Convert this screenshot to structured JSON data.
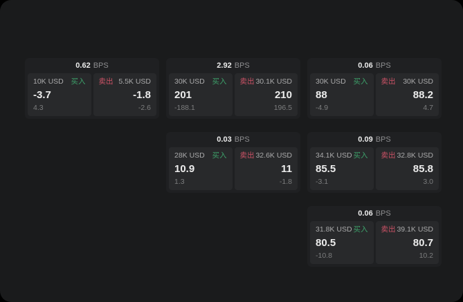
{
  "colors": {
    "page_bg": "#1a1b1c",
    "card_bg": "#1f2022",
    "panel_bg": "#28292b",
    "buy_green": "#3da16a",
    "sell_red": "#cc5266",
    "text_primary": "#ececec",
    "text_secondary": "#aaaaab",
    "text_muted": "#7c7d7e",
    "text_unit": "#8e8e90"
  },
  "labels": {
    "bps_unit": "BPS",
    "buy": "买入",
    "sell": "卖出"
  },
  "cards": [
    {
      "row": 1,
      "col": 1,
      "bps": "0.62",
      "buy": {
        "amount": "10K USD",
        "value": "-3.7",
        "delta": "4.3"
      },
      "sell": {
        "amount": "5.5K USD",
        "value": "-1.8",
        "delta": "-2.6"
      }
    },
    {
      "row": 1,
      "col": 2,
      "bps": "2.92",
      "buy": {
        "amount": "30K USD",
        "value": "201",
        "delta": "-188.1"
      },
      "sell": {
        "amount": "30.1K USD",
        "value": "210",
        "delta": "196.5"
      }
    },
    {
      "row": 1,
      "col": 3,
      "bps": "0.06",
      "buy": {
        "amount": "30K USD",
        "value": "88",
        "delta": "-4.9"
      },
      "sell": {
        "amount": "30K USD",
        "value": "88.2",
        "delta": "4.7"
      }
    },
    {
      "row": 2,
      "col": 2,
      "bps": "0.03",
      "buy": {
        "amount": "28K USD",
        "value": "10.9",
        "delta": "1.3"
      },
      "sell": {
        "amount": "32.6K USD",
        "value": "11",
        "delta": "-1.8"
      }
    },
    {
      "row": 2,
      "col": 3,
      "bps": "0.09",
      "buy": {
        "amount": "34.1K USD",
        "value": "85.5",
        "delta": "-3.1"
      },
      "sell": {
        "amount": "32.8K USD",
        "value": "85.8",
        "delta": "3.0"
      }
    },
    {
      "row": 3,
      "col": 3,
      "bps": "0.06",
      "buy": {
        "amount": "31.8K USD",
        "value": "80.5",
        "delta": "-10.8"
      },
      "sell": {
        "amount": "39.1K USD",
        "value": "80.7",
        "delta": "10.2"
      }
    }
  ]
}
